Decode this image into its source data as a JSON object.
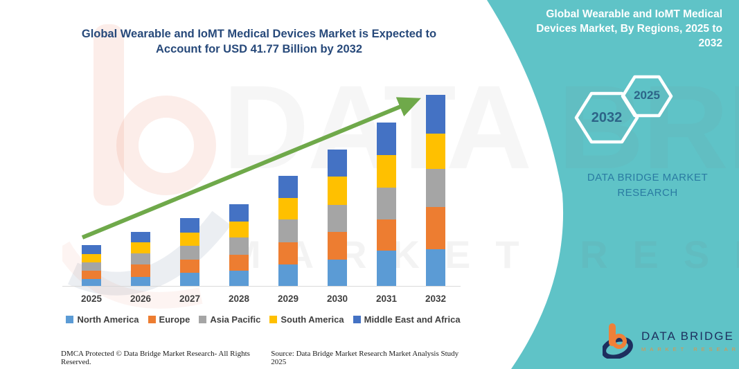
{
  "headline": "Global Wearable and IoMT Medical Devices Market is Expected to Account for USD 41.77 Billion by 2032",
  "side_panel": {
    "title": "Global Wearable and IoMT Medical Devices Market, By Regions, 2025 to 2032",
    "hexagons": [
      {
        "label": "2032"
      },
      {
        "label": "2025"
      }
    ],
    "brand": "DATA BRIDGE MARKET RESEARCH",
    "logo": {
      "name": "DATA BRIDGE",
      "subtext": "MARKET RESEARCH"
    }
  },
  "watermarks": {
    "text1": "DATA BRIDGE",
    "text2": "MARKET RESEARCH"
  },
  "footer": {
    "left": "DMCA Protected © Data Bridge Market Research-  All Rights Reserved.",
    "right": "Source: Data Bridge Market Research  Market Analysis Study 2025"
  },
  "colors": {
    "panel_teal": "#5fc3c7",
    "title_navy": "#27497a",
    "arrow_green": "#6fa94a",
    "axis_gray": "#d9d9d9",
    "label_gray": "#3f3f3f",
    "hex_year_text": "#2d6488",
    "panel_brand_text": "#2a7ba2",
    "logo_navy": "#1d2f5e",
    "logo_orange": "#ef8038"
  },
  "chart_data": {
    "type": "bar",
    "stacked": true,
    "title": "Global Wearable and IoMT Medical Devices Market, By Regions, 2025 to 2032",
    "unit": "USD Billion (no numeric axis shown; values estimated from bar heights, 2032 total stated as USD 41.77 Billion)",
    "categories": [
      "2025",
      "2026",
      "2027",
      "2028",
      "2029",
      "2030",
      "2031",
      "2032"
    ],
    "series": [
      {
        "name": "North America",
        "color": "#5B9BD5",
        "values": [
          1.5,
          2.0,
          2.9,
          3.4,
          4.7,
          5.8,
          7.8,
          8.1
        ]
      },
      {
        "name": "Europe",
        "color": "#ED7D31",
        "values": [
          1.8,
          2.7,
          2.9,
          3.4,
          4.9,
          6.0,
          6.7,
          9.1
        ]
      },
      {
        "name": "Asia Pacific",
        "color": "#A5A5A5",
        "values": [
          1.9,
          2.5,
          3.0,
          3.9,
          5.0,
          5.9,
          7.0,
          8.4
        ]
      },
      {
        "name": "South America",
        "color": "#FFC000",
        "values": [
          1.8,
          2.3,
          2.9,
          3.4,
          4.7,
          6.3,
          7.2,
          7.7
        ]
      },
      {
        "name": "Middle East and Africa",
        "color": "#4472C4",
        "values": [
          1.9,
          2.3,
          3.1,
          3.8,
          4.8,
          5.8,
          7.0,
          8.47
        ]
      }
    ],
    "stack_order": "bottom-to-top follows series order",
    "totals_estimated": [
      8.9,
      11.8,
      14.8,
      17.9,
      24.1,
      29.8,
      35.7,
      41.77
    ],
    "highlight_total": {
      "year": "2032",
      "value": "USD 41.77 Billion"
    },
    "legend_position": "bottom",
    "gridlines": false,
    "y_axis_visible": false,
    "annotations": [
      "green upward trend arrow across bars"
    ]
  }
}
